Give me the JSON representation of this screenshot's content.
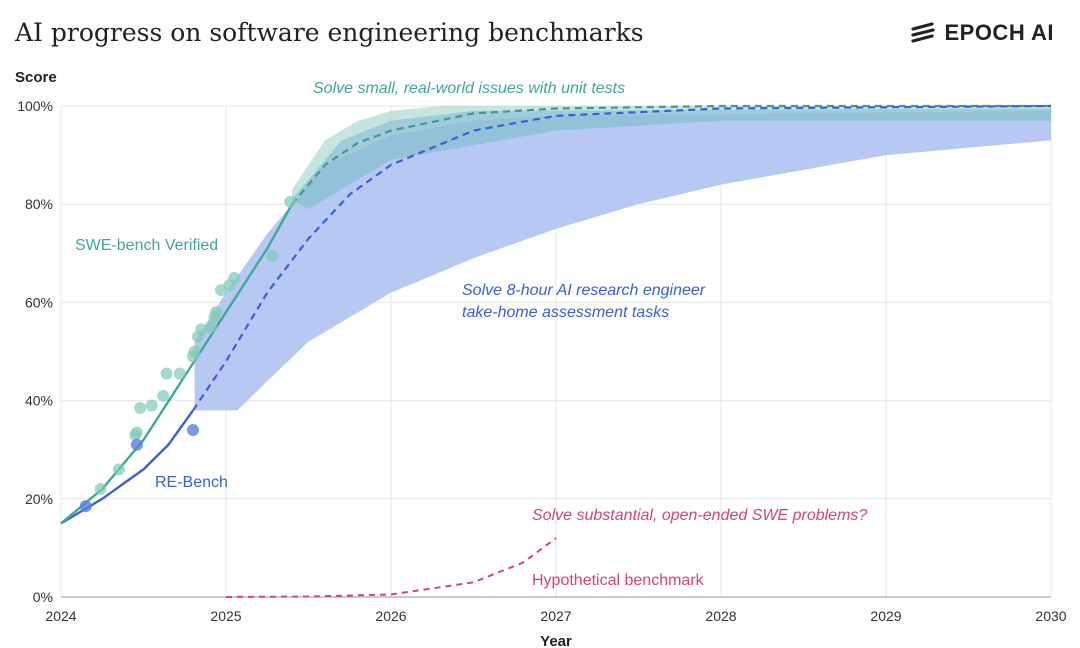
{
  "header": {
    "title": "AI progress on software engineering benchmarks",
    "logo_text": "EPOCH AI"
  },
  "colors": {
    "swe": "#3ea89a",
    "swe_band": "#9fd6cb",
    "re": "#3a5fd6",
    "re_band": "#aac0f0",
    "hyp": "#d4457a",
    "grid": "#e6e6e6"
  },
  "chart_data": {
    "type": "line",
    "title": "AI progress on software engineering benchmarks",
    "xlabel": "Year",
    "ylabel": "Score",
    "xlim": [
      2024,
      2030
    ],
    "ylim": [
      0,
      100
    ],
    "xticks": [
      {
        "v": 2024,
        "label": "2024"
      },
      {
        "v": 2025,
        "label": "2025"
      },
      {
        "v": 2026,
        "label": "2026"
      },
      {
        "v": 2027,
        "label": "2027"
      },
      {
        "v": 2028,
        "label": "2028"
      },
      {
        "v": 2029,
        "label": "2029"
      },
      {
        "v": 2030,
        "label": "2030"
      }
    ],
    "yticks": [
      {
        "v": 0,
        "label": "0%"
      },
      {
        "v": 20,
        "label": "20%"
      },
      {
        "v": 40,
        "label": "40%"
      },
      {
        "v": 60,
        "label": "60%"
      },
      {
        "v": 80,
        "label": "80%"
      },
      {
        "v": 100,
        "label": "100%"
      }
    ],
    "grid": true,
    "series": [
      {
        "name": "SWE-bench Verified",
        "color_key": "swe",
        "points": [
          [
            2024.24,
            22
          ],
          [
            2024.35,
            26
          ],
          [
            2024.45,
            33
          ],
          [
            2024.46,
            33.5
          ],
          [
            2024.48,
            38.5
          ],
          [
            2024.55,
            39
          ],
          [
            2024.62,
            41
          ],
          [
            2024.64,
            45.5
          ],
          [
            2024.72,
            45.5
          ],
          [
            2024.8,
            49
          ],
          [
            2024.81,
            50
          ],
          [
            2024.83,
            53
          ],
          [
            2024.85,
            54.5
          ],
          [
            2024.91,
            55
          ],
          [
            2024.93,
            57
          ],
          [
            2024.94,
            58
          ],
          [
            2024.97,
            62.5
          ],
          [
            2025.02,
            63.5
          ],
          [
            2025.05,
            65
          ],
          [
            2025.28,
            69.5
          ],
          [
            2025.39,
            80.5
          ]
        ],
        "fit": [
          [
            2024,
            15
          ],
          [
            2024.25,
            22
          ],
          [
            2024.5,
            32
          ],
          [
            2024.75,
            45
          ],
          [
            2025,
            58
          ],
          [
            2025.25,
            71
          ],
          [
            2025.4,
            80
          ]
        ],
        "projection": [
          [
            2025.4,
            80
          ],
          [
            2025.6,
            88
          ],
          [
            2025.8,
            92.5
          ],
          [
            2026,
            95
          ],
          [
            2026.5,
            98.5
          ],
          [
            2027,
            99.5
          ],
          [
            2028,
            100
          ],
          [
            2030,
            100
          ]
        ],
        "band_upper": [
          [
            2025.4,
            83
          ],
          [
            2025.6,
            93
          ],
          [
            2025.8,
            97
          ],
          [
            2026,
            99
          ],
          [
            2026.3,
            100
          ],
          [
            2030,
            100
          ]
        ],
        "band_lower": [
          [
            2025.4,
            80
          ],
          [
            2025.5,
            79
          ],
          [
            2025.75,
            85
          ],
          [
            2026,
            89
          ],
          [
            2026.5,
            93
          ],
          [
            2027,
            95
          ],
          [
            2028,
            97
          ],
          [
            2030,
            97
          ]
        ]
      },
      {
        "name": "RE-Bench",
        "color_key": "re",
        "points": [
          [
            2024.15,
            18.5
          ],
          [
            2024.46,
            31
          ],
          [
            2024.8,
            34
          ]
        ],
        "fit": [
          [
            2024,
            15
          ],
          [
            2024.25,
            20
          ],
          [
            2024.5,
            26
          ],
          [
            2024.65,
            31
          ],
          [
            2024.8,
            38
          ]
        ],
        "projection": [
          [
            2024.8,
            38
          ],
          [
            2025,
            48
          ],
          [
            2025.25,
            62
          ],
          [
            2025.5,
            73
          ],
          [
            2025.75,
            82
          ],
          [
            2026,
            88
          ],
          [
            2026.5,
            95
          ],
          [
            2027,
            98
          ],
          [
            2028,
            99.5
          ],
          [
            2030,
            100
          ]
        ],
        "band_upper": [
          [
            2024.81,
            52
          ],
          [
            2025,
            62
          ],
          [
            2025.25,
            74
          ],
          [
            2025.4,
            80
          ],
          [
            2025.6,
            88
          ],
          [
            2026,
            94
          ],
          [
            2026.5,
            97
          ],
          [
            2027,
            98
          ],
          [
            2030,
            99
          ]
        ],
        "band_lower": [
          [
            2024.81,
            38
          ],
          [
            2025.07,
            38
          ],
          [
            2025.25,
            44
          ],
          [
            2025.5,
            52
          ],
          [
            2026,
            62
          ],
          [
            2026.5,
            69
          ],
          [
            2027,
            75
          ],
          [
            2027.5,
            80
          ],
          [
            2028,
            84
          ],
          [
            2029,
            90
          ],
          [
            2030,
            93
          ]
        ]
      },
      {
        "name": "Hypothetical benchmark",
        "color_key": "hyp",
        "projection": [
          [
            2025,
            0
          ],
          [
            2025.5,
            0.1
          ],
          [
            2026,
            0.5
          ],
          [
            2026.5,
            3
          ],
          [
            2026.8,
            7
          ],
          [
            2027,
            12
          ]
        ]
      }
    ],
    "annotations": [
      {
        "text": "Solve small, real-world issues with unit tests",
        "color_key": "swe"
      },
      {
        "text": "Solve 8-hour AI research engineer",
        "color_key": "re"
      },
      {
        "text": "take-home assessment tasks",
        "color_key": "re"
      },
      {
        "text": "Solve substantial, open-ended SWE problems?",
        "color_key": "hyp"
      }
    ]
  }
}
